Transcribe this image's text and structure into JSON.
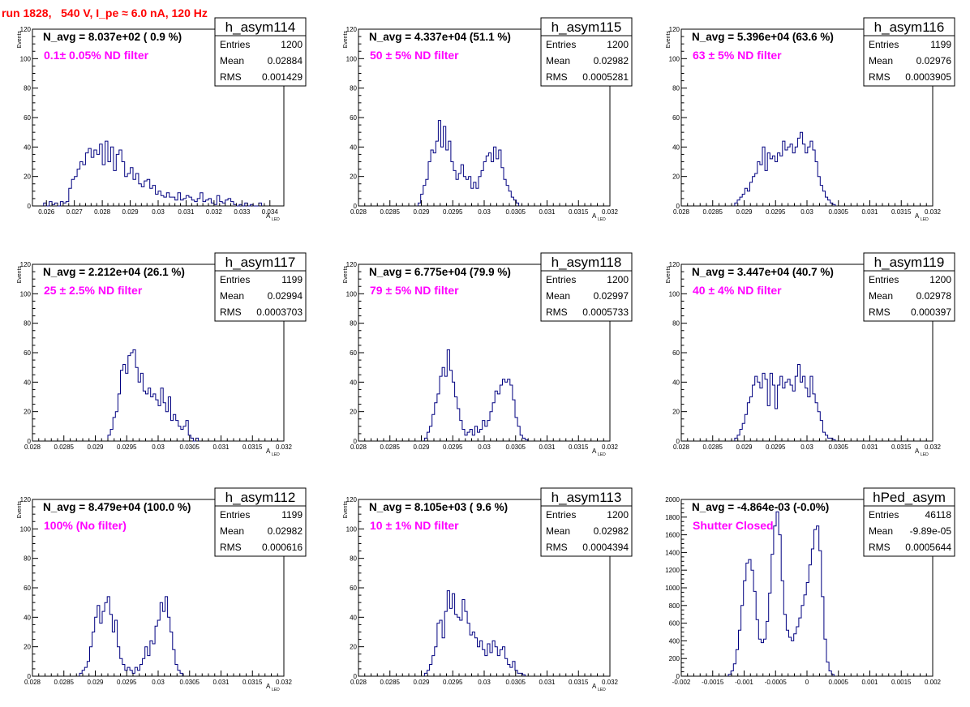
{
  "run_title": "run 1828,   540 V, I_pe ≈ 6.0 nA, 120 Hz",
  "colors": {
    "histogram": "#000080",
    "filter_label": "#ff00ff",
    "run_title": "#ff0000",
    "axes": "#000000"
  },
  "chart_data": [
    {
      "type": "bar",
      "hist_name": "h_asym114",
      "summary": "N_avg = 8.037e+02 ( 0.9 %)",
      "filter_label": "0.1± 0.05% ND filter",
      "stats": [
        [
          "Entries",
          "1200"
        ],
        [
          "Mean",
          "0.02884"
        ],
        [
          "RMS",
          "0.001429"
        ]
      ],
      "ylabel": "Events",
      "xlabel": "A",
      "xlabel_sub": "LED",
      "xlim": [
        0.0255,
        0.0345
      ],
      "ylim": [
        0,
        120
      ],
      "xticks": [
        0.026,
        0.027,
        0.028,
        0.029,
        0.03,
        0.031,
        0.032,
        0.033,
        0.034
      ],
      "xtick_labels": [
        "0.026",
        "0.027",
        "0.028",
        "0.029",
        "0.03",
        "0.031",
        "0.032",
        "0.033",
        "0.034"
      ],
      "yticks": [
        0,
        20,
        40,
        60,
        80,
        100,
        120
      ],
      "ytick_labels": [
        "0",
        "20",
        "40",
        "60",
        "80",
        "100",
        "120"
      ],
      "bin_start": 0.0259,
      "bin_width": 0.0001,
      "values": [
        2,
        0,
        3,
        1,
        2,
        0,
        3,
        2,
        3,
        12,
        18,
        20,
        25,
        30,
        28,
        36,
        39,
        33,
        38,
        35,
        42,
        28,
        44,
        30,
        40,
        24,
        35,
        38,
        30,
        20,
        22,
        26,
        18,
        22,
        15,
        13,
        17,
        18,
        12,
        14,
        8,
        10,
        7,
        6,
        9,
        6,
        6,
        4,
        9,
        4,
        5,
        7,
        6,
        4,
        3,
        5,
        9,
        3,
        4,
        5,
        2,
        1,
        7,
        3,
        2,
        4,
        5,
        3,
        1,
        0,
        1,
        0,
        2,
        0,
        1,
        0,
        0,
        2
      ]
    },
    {
      "type": "bar",
      "hist_name": "h_asym115",
      "summary": "N_avg = 4.337e+04 (51.1 %)",
      "filter_label": "50 ± 5% ND filter",
      "stats": [
        [
          "Entries",
          "1200"
        ],
        [
          "Mean",
          "0.02982"
        ],
        [
          "RMS",
          "0.0005281"
        ]
      ],
      "ylabel": "Events",
      "xlabel": "A",
      "xlabel_sub": "LED",
      "xlim": [
        0.028,
        0.032
      ],
      "ylim": [
        0,
        120
      ],
      "xticks": [
        0.028,
        0.0285,
        0.029,
        0.0295,
        0.03,
        0.0305,
        0.031,
        0.0315,
        0.032
      ],
      "xtick_labels": [
        "0.028",
        "0.0285",
        "0.029",
        "0.0295",
        "0.03",
        "0.0305",
        "0.031",
        "0.0315",
        "0.032"
      ],
      "yticks": [
        0,
        20,
        40,
        60,
        80,
        100,
        120
      ],
      "ytick_labels": [
        "0",
        "20",
        "40",
        "60",
        "80",
        "100",
        "120"
      ],
      "bin_start": 0.02895,
      "bin_width": 4e-05,
      "values": [
        2,
        8,
        14,
        18,
        30,
        38,
        36,
        44,
        58,
        40,
        54,
        38,
        44,
        30,
        24,
        18,
        22,
        28,
        20,
        18,
        20,
        12,
        16,
        12,
        20,
        24,
        30,
        34,
        36,
        30,
        40,
        32,
        38,
        26,
        18,
        14,
        10,
        6,
        4,
        2
      ]
    },
    {
      "type": "bar",
      "hist_name": "h_asym116",
      "summary": "N_avg = 5.396e+04 (63.6 %)",
      "filter_label": "63 ± 5% ND filter",
      "stats": [
        [
          "Entries",
          "1199"
        ],
        [
          "Mean",
          "0.02976"
        ],
        [
          "RMS",
          "0.0003905"
        ]
      ],
      "ylabel": "Events",
      "xlabel": "A",
      "xlabel_sub": "LED",
      "xlim": [
        0.028,
        0.032
      ],
      "ylim": [
        0,
        120
      ],
      "xticks": [
        0.028,
        0.0285,
        0.029,
        0.0295,
        0.03,
        0.0305,
        0.031,
        0.0315,
        0.032
      ],
      "xtick_labels": [
        "0.028",
        "0.0285",
        "0.029",
        "0.0295",
        "0.03",
        "0.0305",
        "0.031",
        "0.0315",
        "0.032"
      ],
      "yticks": [
        0,
        20,
        40,
        60,
        80,
        100,
        120
      ],
      "ytick_labels": [
        "0",
        "20",
        "40",
        "60",
        "80",
        "100",
        "120"
      ],
      "bin_start": 0.02885,
      "bin_width": 4e-05,
      "values": [
        2,
        4,
        6,
        8,
        12,
        10,
        16,
        20,
        22,
        30,
        28,
        40,
        24,
        36,
        32,
        34,
        30,
        36,
        34,
        44,
        38,
        40,
        42,
        36,
        40,
        46,
        50,
        42,
        36,
        40,
        44,
        38,
        30,
        20,
        14,
        10,
        6,
        4,
        2,
        1
      ]
    },
    {
      "type": "bar",
      "hist_name": "h_asym117",
      "summary": "N_avg = 2.212e+04 (26.1 %)",
      "filter_label": "25 ± 2.5% ND filter",
      "stats": [
        [
          "Entries",
          "1199"
        ],
        [
          "Mean",
          "0.02994"
        ],
        [
          "RMS",
          "0.0003703"
        ]
      ],
      "ylabel": "Events",
      "xlabel": "A",
      "xlabel_sub": "LED",
      "xlim": [
        0.028,
        0.032
      ],
      "ylim": [
        0,
        120
      ],
      "xticks": [
        0.028,
        0.0285,
        0.029,
        0.0295,
        0.03,
        0.0305,
        0.031,
        0.0315,
        0.032
      ],
      "xtick_labels": [
        "0.028",
        "0.0285",
        "0.029",
        "0.0295",
        "0.03",
        "0.0305",
        "0.031",
        "0.0315",
        "0.032"
      ],
      "yticks": [
        0,
        20,
        40,
        60,
        80,
        100,
        120
      ],
      "ytick_labels": [
        "0",
        "20",
        "40",
        "60",
        "80",
        "100",
        "120"
      ],
      "bin_start": 0.0292,
      "bin_width": 4e-05,
      "values": [
        4,
        8,
        16,
        20,
        32,
        48,
        52,
        46,
        58,
        60,
        62,
        50,
        40,
        46,
        34,
        32,
        36,
        30,
        32,
        28,
        24,
        36,
        26,
        20,
        30,
        14,
        18,
        14,
        10,
        8,
        10,
        14,
        4,
        2,
        0,
        2
      ]
    },
    {
      "type": "bar",
      "hist_name": "h_asym118",
      "summary": "N_avg = 6.775e+04 (79.9 %)",
      "filter_label": "79 ± 5% ND filter",
      "stats": [
        [
          "Entries",
          "1200"
        ],
        [
          "Mean",
          "0.02997"
        ],
        [
          "RMS",
          "0.0005733"
        ]
      ],
      "ylabel": "Events",
      "xlabel": "A",
      "xlabel_sub": "LED",
      "xlim": [
        0.028,
        0.032
      ],
      "ylim": [
        0,
        120
      ],
      "xticks": [
        0.028,
        0.0285,
        0.029,
        0.0295,
        0.03,
        0.0305,
        0.031,
        0.0315,
        0.032
      ],
      "xtick_labels": [
        "0.028",
        "0.0285",
        "0.029",
        "0.0295",
        "0.03",
        "0.0305",
        "0.031",
        "0.0315",
        "0.032"
      ],
      "yticks": [
        0,
        20,
        40,
        60,
        80,
        100,
        120
      ],
      "ytick_labels": [
        "0",
        "20",
        "40",
        "60",
        "80",
        "100",
        "120"
      ],
      "bin_start": 0.02905,
      "bin_width": 4e-05,
      "values": [
        2,
        6,
        10,
        18,
        26,
        32,
        44,
        50,
        44,
        62,
        48,
        40,
        30,
        22,
        14,
        8,
        4,
        6,
        8,
        4,
        10,
        6,
        8,
        14,
        10,
        14,
        20,
        26,
        34,
        32,
        38,
        42,
        40,
        42,
        38,
        28,
        16,
        10,
        4,
        2,
        1
      ]
    },
    {
      "type": "bar",
      "hist_name": "h_asym119",
      "summary": "N_avg = 3.447e+04 (40.7 %)",
      "filter_label": "40 ± 4% ND filter",
      "stats": [
        [
          "Entries",
          "1200"
        ],
        [
          "Mean",
          "0.02978"
        ],
        [
          "RMS",
          "0.000397"
        ]
      ],
      "ylabel": "Events",
      "xlabel": "A",
      "xlabel_sub": "LED",
      "xlim": [
        0.028,
        0.032
      ],
      "ylim": [
        0,
        120
      ],
      "xticks": [
        0.028,
        0.0285,
        0.029,
        0.0295,
        0.03,
        0.0305,
        0.031,
        0.0315,
        0.032
      ],
      "xtick_labels": [
        "0.028",
        "0.0285",
        "0.029",
        "0.0295",
        "0.03",
        "0.0305",
        "0.031",
        "0.0315",
        "0.032"
      ],
      "yticks": [
        0,
        20,
        40,
        60,
        80,
        100,
        120
      ],
      "ytick_labels": [
        "0",
        "20",
        "40",
        "60",
        "80",
        "100",
        "120"
      ],
      "bin_start": 0.02885,
      "bin_width": 4e-05,
      "values": [
        2,
        4,
        8,
        12,
        18,
        26,
        30,
        38,
        44,
        40,
        36,
        46,
        42,
        24,
        46,
        38,
        22,
        38,
        44,
        36,
        40,
        42,
        38,
        34,
        44,
        52,
        40,
        44,
        36,
        30,
        44,
        32,
        26,
        20,
        14,
        6,
        4,
        2,
        2,
        1
      ]
    },
    {
      "type": "bar",
      "hist_name": "h_asym112",
      "summary": "N_avg = 8.479e+04 (100.0 %)",
      "filter_label": "100% (No filter)",
      "stats": [
        [
          "Entries",
          "1199"
        ],
        [
          "Mean",
          "0.02982"
        ],
        [
          "RMS",
          "0.000616"
        ]
      ],
      "ylabel": "Events",
      "xlabel": "A",
      "xlabel_sub": "LED",
      "xlim": [
        0.028,
        0.032
      ],
      "ylim": [
        0,
        120
      ],
      "xticks": [
        0.028,
        0.0285,
        0.029,
        0.0295,
        0.03,
        0.0305,
        0.031,
        0.0315,
        0.032
      ],
      "xtick_labels": [
        "0.028",
        "0.0285",
        "0.029",
        "0.0295",
        "0.03",
        "0.0305",
        "0.031",
        "0.0315",
        "0.032"
      ],
      "yticks": [
        0,
        20,
        40,
        60,
        80,
        100,
        120
      ],
      "ytick_labels": [
        "0",
        "20",
        "40",
        "60",
        "80",
        "100",
        "120"
      ],
      "bin_start": 0.02875,
      "bin_width": 4e-05,
      "values": [
        2,
        4,
        6,
        10,
        20,
        30,
        40,
        48,
        36,
        44,
        50,
        54,
        42,
        30,
        38,
        20,
        12,
        8,
        4,
        6,
        4,
        2,
        6,
        4,
        8,
        12,
        20,
        14,
        24,
        22,
        34,
        38,
        50,
        44,
        54,
        40,
        30,
        18,
        8,
        4,
        2
      ]
    },
    {
      "type": "bar",
      "hist_name": "h_asym113",
      "summary": "N_avg = 8.105e+03 ( 9.6 %)",
      "filter_label": "10 ± 1% ND filter",
      "stats": [
        [
          "Entries",
          "1200"
        ],
        [
          "Mean",
          "0.02982"
        ],
        [
          "RMS",
          "0.0004394"
        ]
      ],
      "ylabel": "Events",
      "xlabel": "A",
      "xlabel_sub": "LED",
      "xlim": [
        0.028,
        0.032
      ],
      "ylim": [
        0,
        120
      ],
      "xticks": [
        0.028,
        0.0285,
        0.029,
        0.0295,
        0.03,
        0.0305,
        0.031,
        0.0315,
        0.032
      ],
      "xtick_labels": [
        "0.028",
        "0.0285",
        "0.029",
        "0.0295",
        "0.03",
        "0.0305",
        "0.031",
        "0.0315",
        "0.032"
      ],
      "yticks": [
        0,
        20,
        40,
        60,
        80,
        100,
        120
      ],
      "ytick_labels": [
        "0",
        "20",
        "40",
        "60",
        "80",
        "100",
        "120"
      ],
      "bin_start": 0.02905,
      "bin_width": 4e-05,
      "values": [
        2,
        4,
        8,
        14,
        20,
        36,
        38,
        26,
        44,
        58,
        46,
        56,
        42,
        40,
        38,
        52,
        44,
        36,
        28,
        30,
        26,
        20,
        24,
        18,
        14,
        22,
        16,
        24,
        20,
        14,
        18,
        20,
        12,
        8,
        6,
        10,
        4,
        2,
        2,
        1
      ]
    },
    {
      "type": "bar",
      "hist_name": "hPed_asym",
      "summary": "N_avg = -4.864e-03 (-0.0%)",
      "filter_label": "Shutter Closed",
      "stats": [
        [
          "Entries",
          "46118"
        ],
        [
          "Mean",
          "-9.89e-05"
        ],
        [
          "RMS",
          "0.0005644"
        ]
      ],
      "ylabel": "",
      "xlabel": "",
      "xlabel_sub": "",
      "xlim": [
        -0.002,
        0.002
      ],
      "ylim": [
        0,
        2000
      ],
      "xticks": [
        -0.002,
        -0.0015,
        -0.001,
        -0.0005,
        0,
        0.0005,
        0.001,
        0.0015,
        0.002
      ],
      "xtick_labels": [
        "-0.002",
        "-0.0015",
        "-0.001",
        "-0.0005",
        "0",
        "0.0005",
        "0.001",
        "0.0015",
        "0.002"
      ],
      "yticks": [
        0,
        200,
        400,
        600,
        800,
        1000,
        1200,
        1400,
        1600,
        1800,
        2000
      ],
      "ytick_labels": [
        "0",
        "200",
        "400",
        "600",
        "800",
        "1000",
        "1200",
        "1400",
        "1600",
        "1800",
        "2000"
      ],
      "bin_start": -0.00125,
      "bin_width": 4e-05,
      "values": [
        20,
        60,
        140,
        300,
        520,
        800,
        1080,
        1280,
        1320,
        1200,
        960,
        640,
        420,
        380,
        420,
        620,
        940,
        1380,
        1700,
        1860,
        1600,
        1080,
        700,
        520,
        440,
        400,
        480,
        560,
        660,
        800,
        920,
        1060,
        1260,
        1440,
        1660,
        1700,
        1420,
        900,
        420,
        160,
        60,
        20
      ]
    }
  ]
}
